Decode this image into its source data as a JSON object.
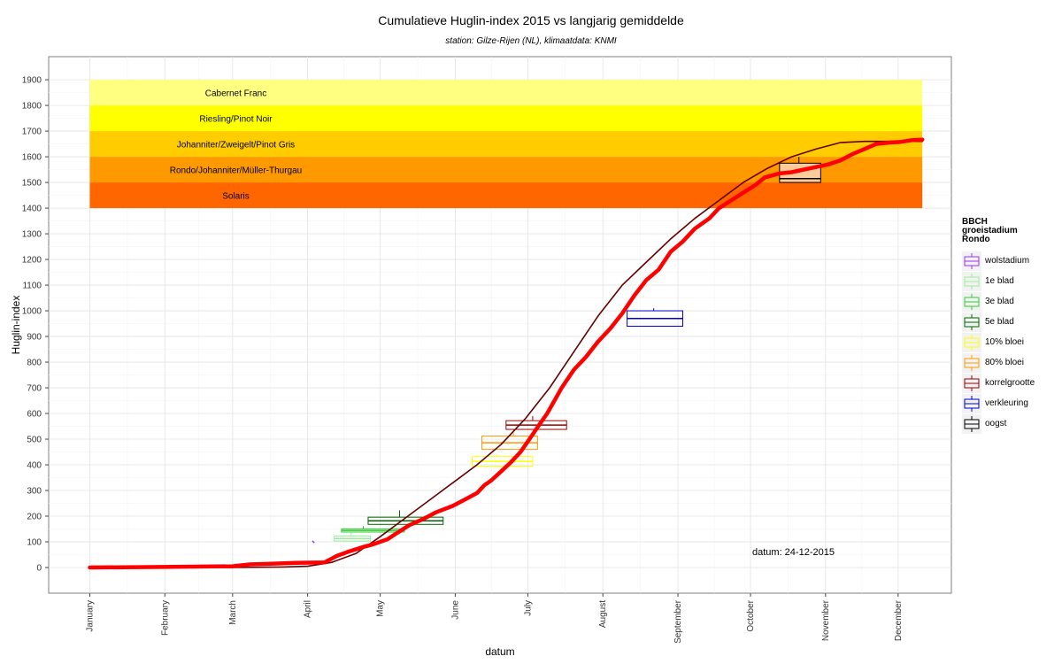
{
  "chart_data": {
    "type": "line",
    "title": "Cumulatieve Huglin-index 2015 vs langjarig gemiddelde",
    "subtitle": "station: Gilze-Rijen (NL), klimaatdata: KNMI",
    "xlabel": "datum",
    "ylabel": "Huglin-index",
    "x_tick_labels": [
      "January",
      "February",
      "March",
      "April",
      "May",
      "June",
      "July",
      "August",
      "September",
      "October",
      "November",
      "December"
    ],
    "y_ticks": [
      0,
      100,
      200,
      300,
      400,
      500,
      600,
      700,
      800,
      900,
      1000,
      1100,
      1200,
      1300,
      1400,
      1500,
      1600,
      1700,
      1800,
      1900
    ],
    "xlim_day": [
      -17,
      356
    ],
    "ylim": [
      -100,
      1990
    ],
    "grid": true,
    "legend_position": "right",
    "bands": [
      {
        "label": "Solaris",
        "ymin": 1400,
        "ymax": 1500,
        "color": "#FF6600"
      },
      {
        "label": "Rondo/Johanniter/Müller-Thurgau",
        "ymin": 1500,
        "ymax": 1600,
        "color": "#FF9900"
      },
      {
        "label": "Johanniter/Zweigelt/Pinot Gris",
        "ymin": 1600,
        "ymax": 1700,
        "color": "#FFCC00"
      },
      {
        "label": "Riesling/Pinot Noir",
        "ymin": 1700,
        "ymax": 1800,
        "color": "#FFFF00"
      },
      {
        "label": "Cabernet Franc",
        "ymin": 1800,
        "ymax": 1900,
        "color": "#FFFF80"
      }
    ],
    "band_x_day": [
      0,
      344
    ],
    "series": [
      {
        "color": "#660000",
        "width": 1.6,
        "points": [
          [
            0,
            0
          ],
          [
            60,
            0
          ],
          [
            80,
            2
          ],
          [
            90,
            5
          ],
          [
            100,
            20
          ],
          [
            110,
            55
          ],
          [
            120,
            120
          ],
          [
            130,
            190
          ],
          [
            140,
            260
          ],
          [
            150,
            330
          ],
          [
            160,
            400
          ],
          [
            170,
            480
          ],
          [
            180,
            580
          ],
          [
            190,
            700
          ],
          [
            200,
            840
          ],
          [
            210,
            980
          ],
          [
            220,
            1100
          ],
          [
            230,
            1190
          ],
          [
            240,
            1280
          ],
          [
            250,
            1360
          ],
          [
            260,
            1430
          ],
          [
            270,
            1500
          ],
          [
            280,
            1555
          ],
          [
            290,
            1600
          ],
          [
            300,
            1630
          ],
          [
            310,
            1655
          ],
          [
            320,
            1660
          ],
          [
            330,
            1660
          ],
          [
            344,
            1660
          ]
        ]
      },
      {
        "color": "#FF0000",
        "width": 4.5,
        "points": [
          [
            0,
            0
          ],
          [
            30,
            2
          ],
          [
            59,
            5
          ],
          [
            66,
            12
          ],
          [
            75,
            15
          ],
          [
            85,
            18
          ],
          [
            97,
            20
          ],
          [
            102,
            45
          ],
          [
            107,
            62
          ],
          [
            113,
            80
          ],
          [
            117,
            90
          ],
          [
            123,
            110
          ],
          [
            127,
            135
          ],
          [
            132,
            165
          ],
          [
            138,
            190
          ],
          [
            143,
            215
          ],
          [
            150,
            240
          ],
          [
            155,
            265
          ],
          [
            160,
            290
          ],
          [
            163,
            320
          ],
          [
            166,
            340
          ],
          [
            170,
            375
          ],
          [
            174,
            410
          ],
          [
            178,
            450
          ],
          [
            182,
            505
          ],
          [
            186,
            560
          ],
          [
            189,
            600
          ],
          [
            192,
            650
          ],
          [
            195,
            700
          ],
          [
            200,
            770
          ],
          [
            205,
            820
          ],
          [
            210,
            880
          ],
          [
            215,
            930
          ],
          [
            220,
            990
          ],
          [
            225,
            1060
          ],
          [
            230,
            1120
          ],
          [
            235,
            1160
          ],
          [
            240,
            1230
          ],
          [
            245,
            1270
          ],
          [
            250,
            1320
          ],
          [
            256,
            1360
          ],
          [
            260,
            1400
          ],
          [
            265,
            1430
          ],
          [
            270,
            1460
          ],
          [
            275,
            1490
          ],
          [
            279,
            1520
          ],
          [
            285,
            1535
          ],
          [
            290,
            1540
          ],
          [
            295,
            1550
          ],
          [
            300,
            1560
          ],
          [
            305,
            1570
          ],
          [
            310,
            1585
          ],
          [
            315,
            1610
          ],
          [
            320,
            1630
          ],
          [
            325,
            1650
          ],
          [
            330,
            1655
          ],
          [
            335,
            1658
          ],
          [
            340,
            1665
          ],
          [
            344,
            1667
          ]
        ]
      }
    ],
    "boxplots": [
      {
        "name": "wolstadium",
        "color": "#9933FF",
        "x_min": 92,
        "x_q1": 92,
        "x_med": 92,
        "x_q3": 92,
        "x_max": 92,
        "y_min": 96,
        "y_max": 104
      },
      {
        "name": "1e blad",
        "color": "#99EE99",
        "x_min": 101,
        "x_q1": 101,
        "x_med": 108,
        "x_q3": 116,
        "x_max": 116,
        "y_min": 103,
        "y_max": 123,
        "whisker_y": [
          121,
          135
        ]
      },
      {
        "name": "3e blad",
        "color": "#33CC33",
        "x_min": 104,
        "x_q1": 104,
        "x_med": 113,
        "x_q3": 130,
        "x_max": 130,
        "y_min": 138,
        "y_max": 150,
        "whisker_y": [
          150,
          162
        ]
      },
      {
        "name": "5e blad",
        "color": "#006600",
        "x_min": 115,
        "x_q1": 115,
        "x_med": 128,
        "x_q3": 146,
        "x_max": 146,
        "y_min": 168,
        "y_max": 196,
        "whisker_y": [
          196,
          223
        ]
      },
      {
        "name": "10% bloei",
        "color": "#FFFF00",
        "x_min": 158,
        "x_q1": 158,
        "x_med": 168,
        "x_q3": 183,
        "x_max": 183,
        "y_min": 395,
        "y_max": 432,
        "whisker_y": [
          432,
          440
        ]
      },
      {
        "name": "80% bloei",
        "color": "#FF9900",
        "x_min": 162,
        "x_q1": 162,
        "x_med": 175,
        "x_q3": 185,
        "x_max": 185,
        "y_min": 460,
        "y_max": 512,
        "whisker_y": [
          512,
          525
        ]
      },
      {
        "name": "korrelgrootte",
        "color": "#990000",
        "x_min": 172,
        "x_q1": 172,
        "x_med": 183,
        "x_q3": 197,
        "x_max": 197,
        "y_min": 538,
        "y_max": 572,
        "whisker_y": [
          572,
          590
        ]
      },
      {
        "name": "verkleuring",
        "color": "#0000CC",
        "x_min": 222,
        "x_q1": 222,
        "x_med": 233,
        "x_q3": 245,
        "x_max": 245,
        "y_min": 940,
        "y_max": 1000,
        "whisker_y": [
          1000,
          1010
        ]
      },
      {
        "name": "oogst",
        "color": "#000000",
        "fill": "#FFCC99",
        "x_min": 285,
        "x_q1": 285,
        "x_med": 293,
        "x_q3": 302,
        "x_max": 302,
        "y_min": 1500,
        "y_max": 1575,
        "y_med": 1515,
        "whisker_y": [
          1575,
          1600
        ]
      }
    ],
    "annotation": {
      "text": "datum: 24-12-2015",
      "x_day": 320,
      "y": 55
    }
  },
  "legend": {
    "title": "BBCH\ngroeistadium\nRondo",
    "items": [
      {
        "label": "wolstadium",
        "color": "#9933FF"
      },
      {
        "label": "1e blad",
        "color": "#99EE99"
      },
      {
        "label": "3e blad",
        "color": "#33CC33"
      },
      {
        "label": "5e blad",
        "color": "#006600"
      },
      {
        "label": "10% bloei",
        "color": "#FFFF00"
      },
      {
        "label": "80% bloei",
        "color": "#FF9900"
      },
      {
        "label": "korrelgrootte",
        "color": "#990000"
      },
      {
        "label": "verkleuring",
        "color": "#0000CC"
      },
      {
        "label": "oogst",
        "color": "#000000"
      }
    ]
  }
}
